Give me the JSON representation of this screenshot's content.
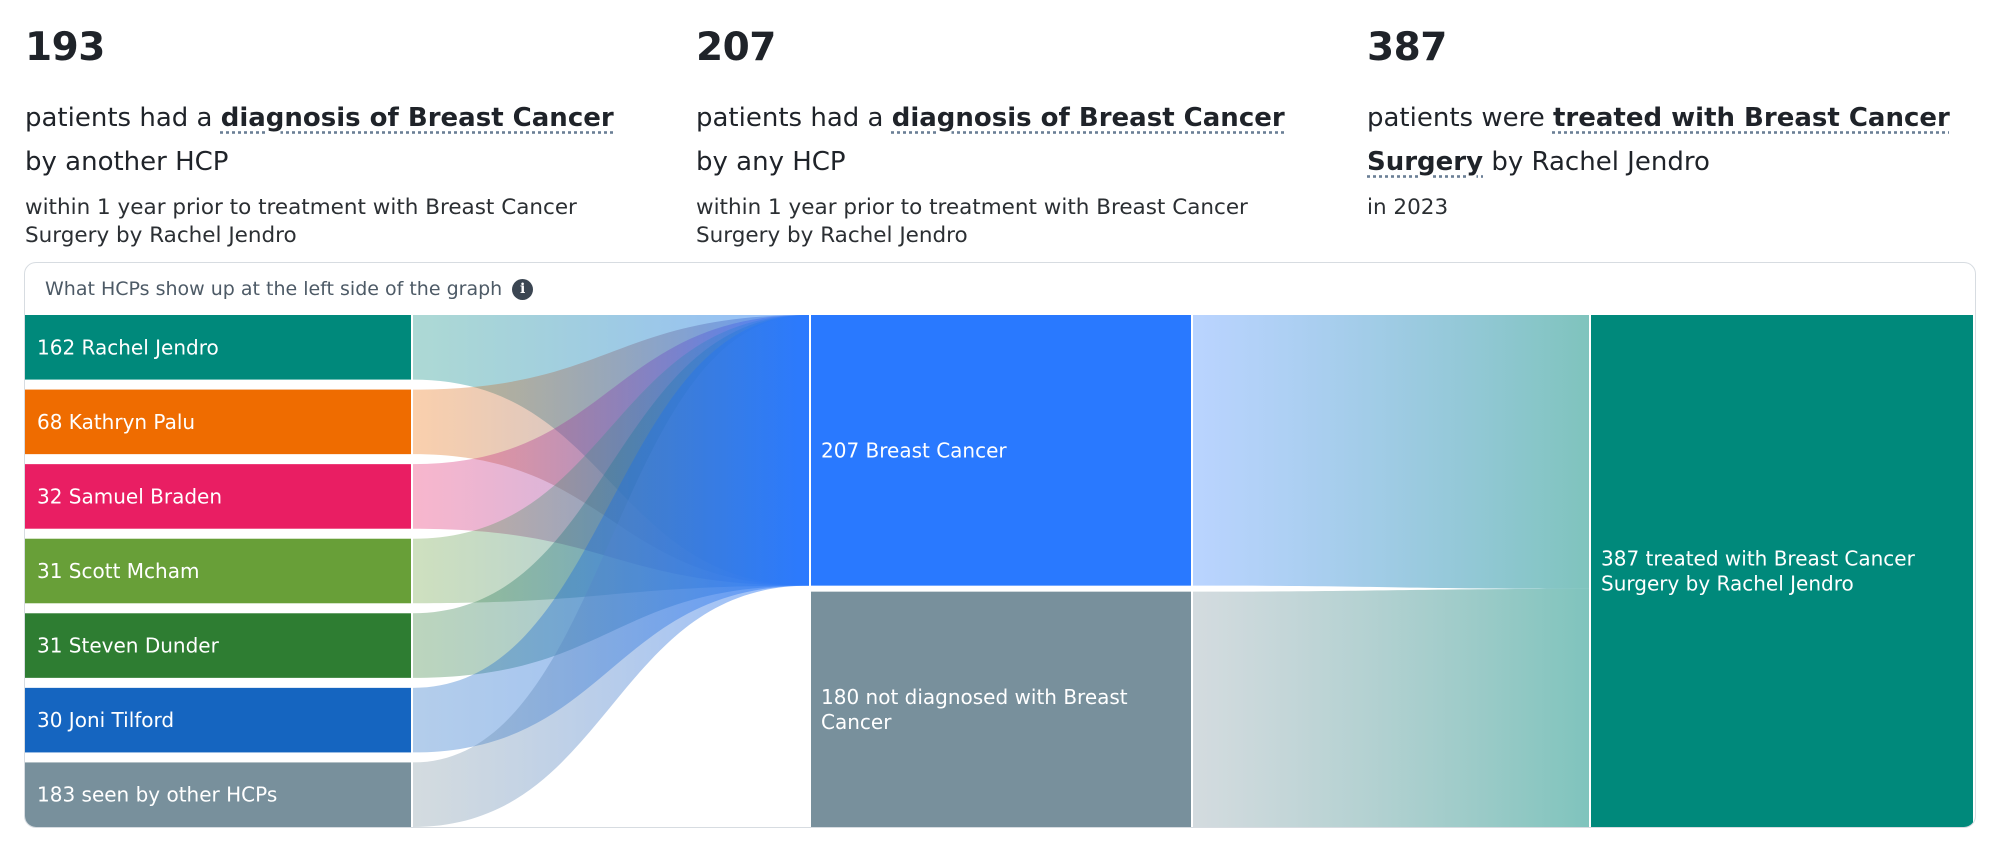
{
  "stats": [
    {
      "number": "193",
      "desc_pre": "patients had a ",
      "desc_highlight": "diagnosis of Breast Cancer",
      "desc_post": " by another HCP",
      "sub": "within 1 year prior to treatment with Breast Cancer Surgery by Rachel Jendro"
    },
    {
      "number": "207",
      "desc_pre": "patients had a ",
      "desc_highlight": "diagnosis of Breast Cancer",
      "desc_post": " by any HCP",
      "sub": "within 1 year prior to treatment with Breast Cancer Surgery by Rachel Jendro"
    },
    {
      "number": "387",
      "desc_pre": "patients were ",
      "desc_highlight": "treated with Breast Cancer Surgery",
      "desc_post": " by Rachel Jendro",
      "sub": "in 2023"
    }
  ],
  "panel": {
    "title": "What HCPs show up at the left side of the graph",
    "info_icon": "info-icon"
  },
  "chart_data": {
    "type": "sankey",
    "nodes": {
      "left": [
        {
          "id": "rachel",
          "label": "162 Rachel Jendro",
          "value": 162,
          "color": "#00897b"
        },
        {
          "id": "kathryn",
          "label": "68 Kathryn Palu",
          "value": 68,
          "color": "#ef6c00"
        },
        {
          "id": "samuel",
          "label": "32 Samuel Braden",
          "value": 32,
          "color": "#e91e63"
        },
        {
          "id": "scott",
          "label": "31 Scott Mcham",
          "value": 31,
          "color": "#689f38"
        },
        {
          "id": "steven",
          "label": "31 Steven Dunder",
          "value": 31,
          "color": "#2e7d32"
        },
        {
          "id": "joni",
          "label": "30 Joni Tilford",
          "value": 30,
          "color": "#1565c0"
        },
        {
          "id": "other",
          "label": "183 seen by other HCPs",
          "value": 183,
          "color": "#78909c"
        }
      ],
      "middle": [
        {
          "id": "bc",
          "label": "207 Breast Cancer",
          "value": 207,
          "color": "#2979ff"
        },
        {
          "id": "nbc",
          "label": "180 not diagnosed with Breast Cancer",
          "value": 180,
          "color": "#78909c"
        }
      ],
      "right": [
        {
          "id": "treated",
          "label": "387 treated with Breast Cancer Surgery by Rachel Jendro",
          "value": 387,
          "color": "#00897b"
        }
      ]
    },
    "links": [
      {
        "source": "rachel",
        "target": "bc"
      },
      {
        "source": "kathryn",
        "target": "bc"
      },
      {
        "source": "samuel",
        "target": "bc"
      },
      {
        "source": "scott",
        "target": "bc"
      },
      {
        "source": "steven",
        "target": "bc"
      },
      {
        "source": "joni",
        "target": "bc"
      },
      {
        "source": "other",
        "target": "bc"
      },
      {
        "source": "bc",
        "target": "treated",
        "value": 207
      },
      {
        "source": "nbc",
        "target": "treated",
        "value": 180
      }
    ]
  }
}
